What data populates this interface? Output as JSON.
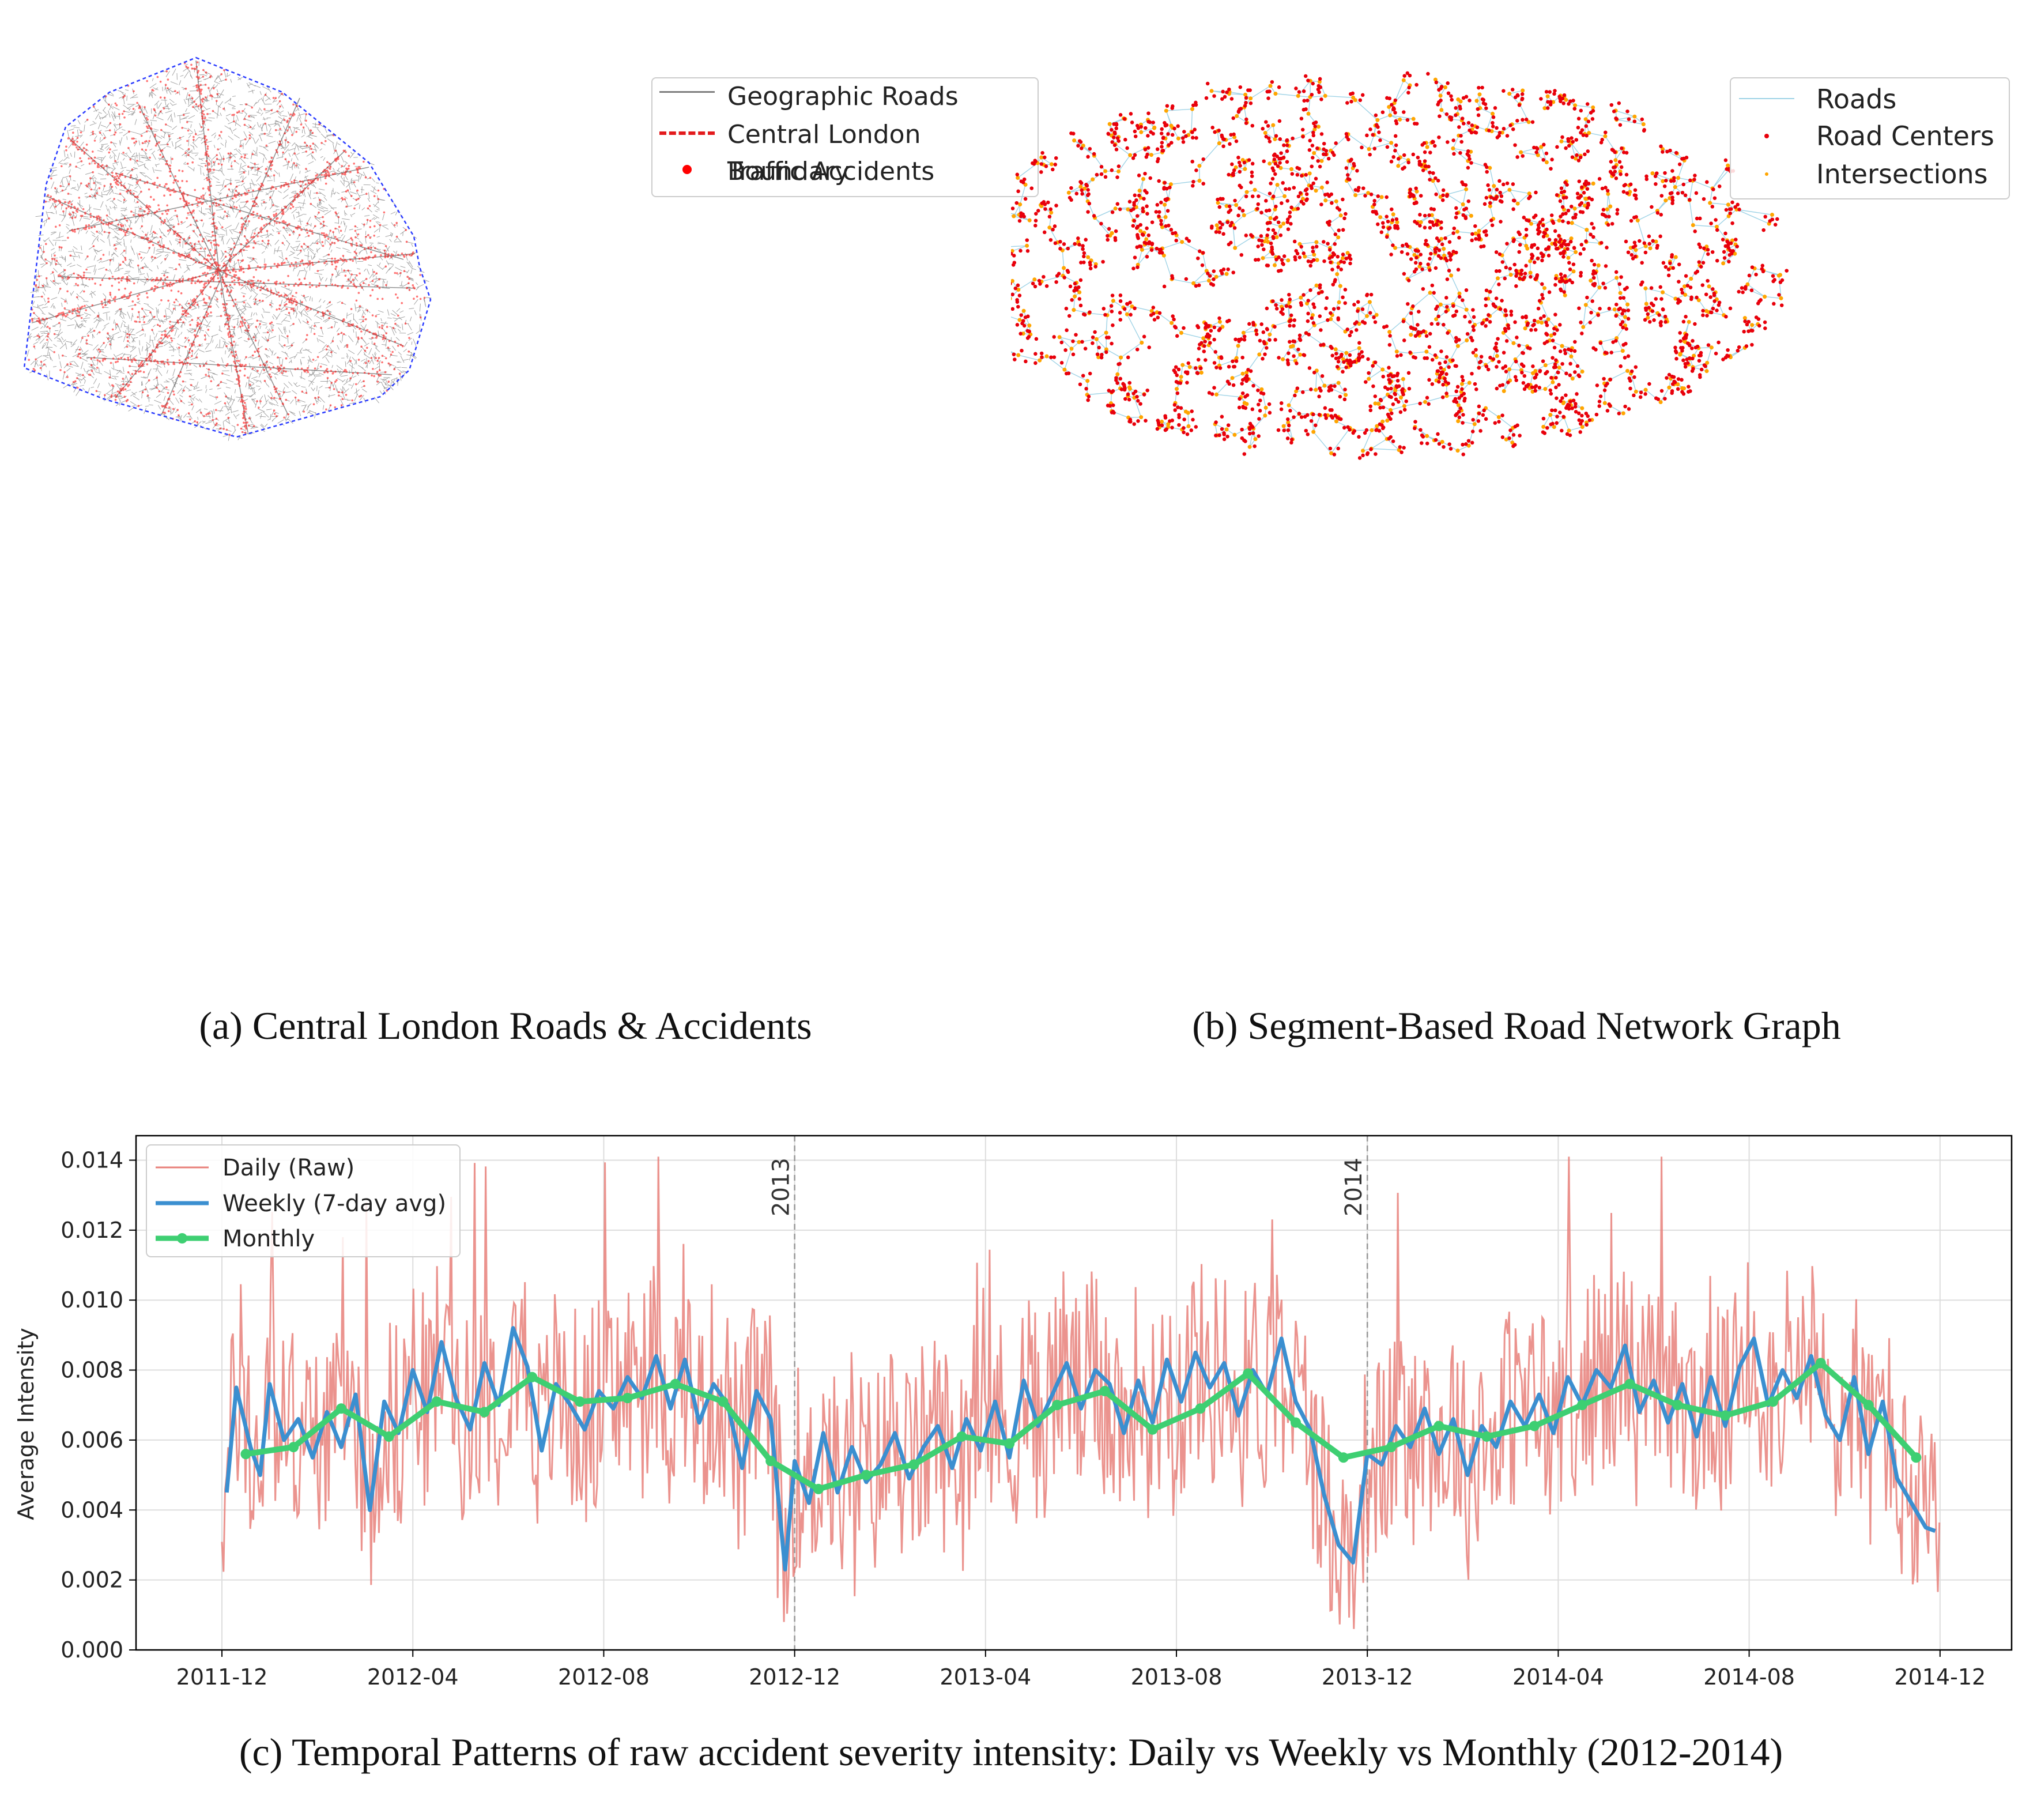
{
  "panel_a": {
    "caption": "(a) Central London Roads & Accidents",
    "legend": {
      "roads": "Geographic Roads",
      "boundary": "Central London Boundary",
      "accidents": "Traffic Accidents"
    },
    "colors": {
      "roads": "#7f7f7f",
      "boundary": "#e31a1c",
      "boundary_line": "#2b3cff",
      "accidents": "#ff0000"
    }
  },
  "panel_b": {
    "caption": "(b) Segment-Based Road Network Graph",
    "legend": {
      "roads": "Roads",
      "centers": "Road Centers",
      "intersections": "Intersections"
    },
    "colors": {
      "roads": "#9fd3e6",
      "centers": "#e8000b",
      "intersections": "#ffa500"
    }
  },
  "panel_c": {
    "caption": "(c) Temporal Patterns of raw accident severity intensity: Daily vs Weekly vs Monthly (2012-2014)",
    "chart_data": {
      "type": "line",
      "title": "",
      "xlabel": "",
      "ylabel": "Average Intensity",
      "ylim": [
        0.0,
        0.0147
      ],
      "yticks": [
        "0.000",
        "0.002",
        "0.004",
        "0.006",
        "0.008",
        "0.010",
        "0.012",
        "0.014"
      ],
      "ytick_values": [
        0,
        0.002,
        0.004,
        0.006,
        0.008,
        0.01,
        0.012,
        0.014
      ],
      "xticks": [
        "2011-12",
        "2012-04",
        "2012-08",
        "2012-12",
        "2013-04",
        "2013-08",
        "2013-12",
        "2014-04",
        "2014-08",
        "2014-12"
      ],
      "xtick_months": [
        0,
        4,
        8,
        12,
        16,
        20,
        24,
        28,
        32,
        36
      ],
      "xlim_months": [
        -1.8,
        37.5
      ],
      "year_markers": [
        {
          "label": "2013",
          "month": 12
        },
        {
          "label": "2014",
          "month": 24
        }
      ],
      "legend": [
        "Daily (Raw)",
        "Weekly (7-day avg)",
        "Monthly"
      ],
      "colors": {
        "daily": "#e8807a",
        "weekly": "#3b8fd0",
        "monthly": "#3ecf72"
      },
      "series": [
        {
          "name": "Monthly",
          "x_months": [
            0.5,
            1.5,
            2.5,
            3.5,
            4.5,
            5.5,
            6.5,
            7.5,
            8.5,
            9.5,
            10.5,
            11.5,
            12.5,
            13.5,
            14.5,
            15.5,
            16.5,
            17.5,
            18.5,
            19.5,
            20.5,
            21.5,
            22.5,
            23.5,
            24.5,
            25.5,
            26.5,
            27.5,
            28.5,
            29.5,
            30.5,
            31.5,
            32.5,
            33.5,
            34.5,
            35.5
          ],
          "values": [
            0.0056,
            0.0058,
            0.0069,
            0.0061,
            0.0071,
            0.0068,
            0.0078,
            0.0071,
            0.0072,
            0.0076,
            0.0071,
            0.0054,
            0.0046,
            0.005,
            0.0053,
            0.0061,
            0.0059,
            0.007,
            0.0074,
            0.0063,
            0.0069,
            0.0079,
            0.0065,
            0.0055,
            0.0058,
            0.0064,
            0.0061,
            0.0064,
            0.007,
            0.0076,
            0.007,
            0.0067,
            0.0071,
            0.0082,
            0.007,
            0.0055
          ]
        },
        {
          "name": "Weekly (7-day avg)",
          "x_months": [
            0.1,
            0.3,
            0.6,
            0.8,
            1.0,
            1.3,
            1.6,
            1.9,
            2.2,
            2.5,
            2.8,
            3.1,
            3.4,
            3.7,
            4.0,
            4.3,
            4.6,
            4.9,
            5.2,
            5.5,
            5.8,
            6.1,
            6.4,
            6.7,
            7.0,
            7.3,
            7.6,
            7.9,
            8.2,
            8.5,
            8.8,
            9.1,
            9.4,
            9.7,
            10.0,
            10.3,
            10.6,
            10.9,
            11.2,
            11.5,
            11.8,
            12.0,
            12.3,
            12.6,
            12.9,
            13.2,
            13.5,
            13.8,
            14.1,
            14.4,
            14.7,
            15.0,
            15.3,
            15.6,
            15.9,
            16.2,
            16.5,
            16.8,
            17.1,
            17.4,
            17.7,
            18.0,
            18.3,
            18.6,
            18.9,
            19.2,
            19.5,
            19.8,
            20.1,
            20.4,
            20.7,
            21.0,
            21.3,
            21.6,
            21.9,
            22.2,
            22.5,
            22.8,
            23.1,
            23.4,
            23.7,
            24.0,
            24.3,
            24.6,
            24.9,
            25.2,
            25.5,
            25.8,
            26.1,
            26.4,
            26.7,
            27.0,
            27.3,
            27.6,
            27.9,
            28.2,
            28.5,
            28.8,
            29.1,
            29.4,
            29.7,
            30.0,
            30.3,
            30.6,
            30.9,
            31.2,
            31.5,
            31.8,
            32.1,
            32.4,
            32.7,
            33.0,
            33.3,
            33.6,
            33.9,
            34.2,
            34.5,
            34.8,
            35.1,
            35.4,
            35.7,
            35.9
          ],
          "values": [
            0.0045,
            0.0075,
            0.0058,
            0.005,
            0.0076,
            0.006,
            0.0066,
            0.0055,
            0.0068,
            0.0058,
            0.0073,
            0.004,
            0.0071,
            0.0062,
            0.008,
            0.0068,
            0.0088,
            0.0072,
            0.0063,
            0.0082,
            0.007,
            0.0092,
            0.0081,
            0.0057,
            0.0076,
            0.007,
            0.0063,
            0.0074,
            0.0069,
            0.0078,
            0.0072,
            0.0084,
            0.0069,
            0.0083,
            0.0065,
            0.0076,
            0.007,
            0.0052,
            0.0074,
            0.0066,
            0.0023,
            0.0054,
            0.0042,
            0.0062,
            0.0045,
            0.0058,
            0.0048,
            0.0053,
            0.0062,
            0.0049,
            0.0058,
            0.0064,
            0.0052,
            0.0066,
            0.0057,
            0.0071,
            0.0055,
            0.0077,
            0.0064,
            0.0073,
            0.0082,
            0.0069,
            0.008,
            0.0076,
            0.0062,
            0.0077,
            0.0065,
            0.0083,
            0.0071,
            0.0085,
            0.0075,
            0.0082,
            0.0067,
            0.008,
            0.0073,
            0.0089,
            0.0071,
            0.0063,
            0.0044,
            0.003,
            0.0025,
            0.0056,
            0.0053,
            0.0064,
            0.0058,
            0.0069,
            0.0056,
            0.0066,
            0.005,
            0.0064,
            0.0058,
            0.0071,
            0.0064,
            0.0073,
            0.0062,
            0.0078,
            0.007,
            0.008,
            0.0075,
            0.0087,
            0.0068,
            0.0077,
            0.0065,
            0.0076,
            0.0061,
            0.0078,
            0.0064,
            0.0081,
            0.0089,
            0.007,
            0.008,
            0.0072,
            0.0084,
            0.0067,
            0.006,
            0.0078,
            0.0056,
            0.0071,
            0.0049,
            0.0042,
            0.0035,
            0.0034
          ]
        }
      ]
    }
  }
}
